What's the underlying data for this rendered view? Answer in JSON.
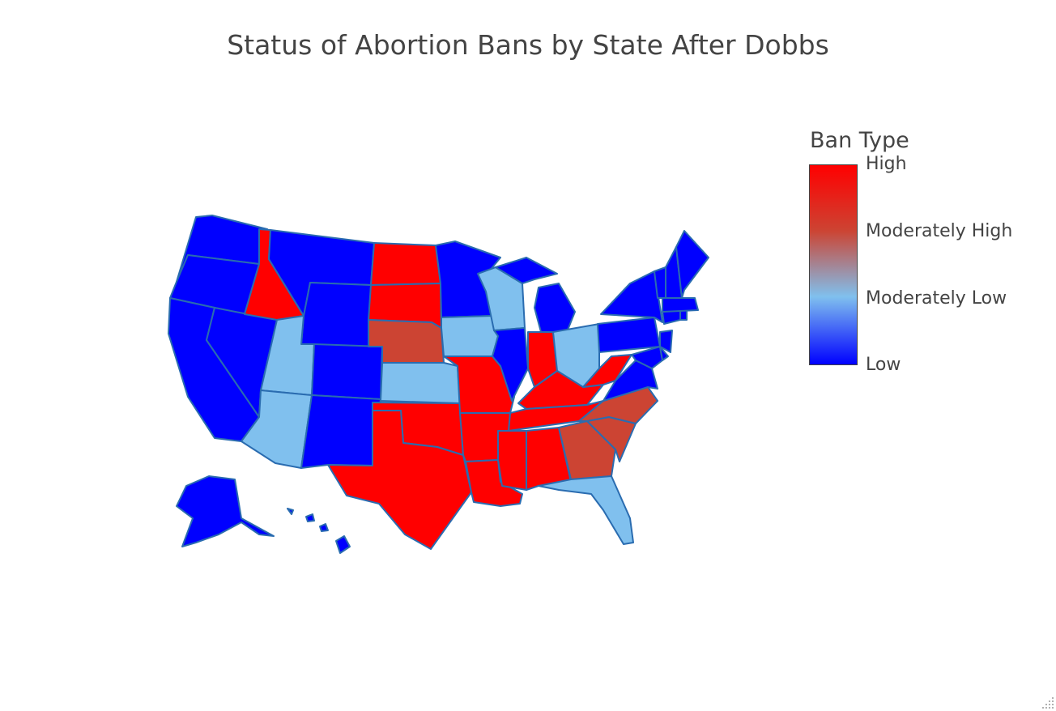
{
  "title": "Status of Abortion Bans by State After Dobbs",
  "legend": {
    "title": "Ban Type",
    "ticks": [
      "High",
      "Moderately High",
      "Moderately Low",
      "Low"
    ],
    "colors": {
      "High": "#ff0000",
      "Moderately High": "#cc4433",
      "Moderately Low": "#80c0ee",
      "Low": "#0000ff"
    },
    "stroke": "#2a6cb0"
  },
  "chart_data": {
    "type": "choropleth",
    "scope": "usa",
    "title": "Status of Abortion Bans by State After Dobbs",
    "colorbar_title": "Ban Type",
    "colorbar_ticks": [
      "High",
      "Moderately High",
      "Moderately Low",
      "Low"
    ],
    "states": {
      "WA": "Low",
      "OR": "Low",
      "CA": "Low",
      "NV": "Low",
      "ID": "High",
      "MT": "Low",
      "WY": "Low",
      "UT": "Moderately Low",
      "AZ": "Moderately Low",
      "CO": "Low",
      "NM": "Low",
      "ND": "High",
      "SD": "High",
      "NE": "Moderately High",
      "KS": "Moderately Low",
      "OK": "High",
      "TX": "High",
      "MN": "Low",
      "IA": "Moderately Low",
      "MO": "High",
      "AR": "High",
      "LA": "High",
      "WI": "Moderately Low",
      "IL": "Low",
      "MI": "Low",
      "IN": "High",
      "OH": "Moderately Low",
      "KY": "High",
      "TN": "High",
      "MS": "High",
      "AL": "High",
      "GA": "Moderately High",
      "FL": "Moderately Low",
      "SC": "Moderately High",
      "NC": "Moderately High",
      "VA": "Low",
      "WV": "High",
      "PA": "Low",
      "NY": "Low",
      "VT": "Low",
      "NH": "Low",
      "ME": "Low",
      "MA": "Low",
      "RI": "Low",
      "CT": "Low",
      "NJ": "Low",
      "DE": "Low",
      "MD": "Low",
      "AK": "Low",
      "HI": "Low"
    }
  }
}
